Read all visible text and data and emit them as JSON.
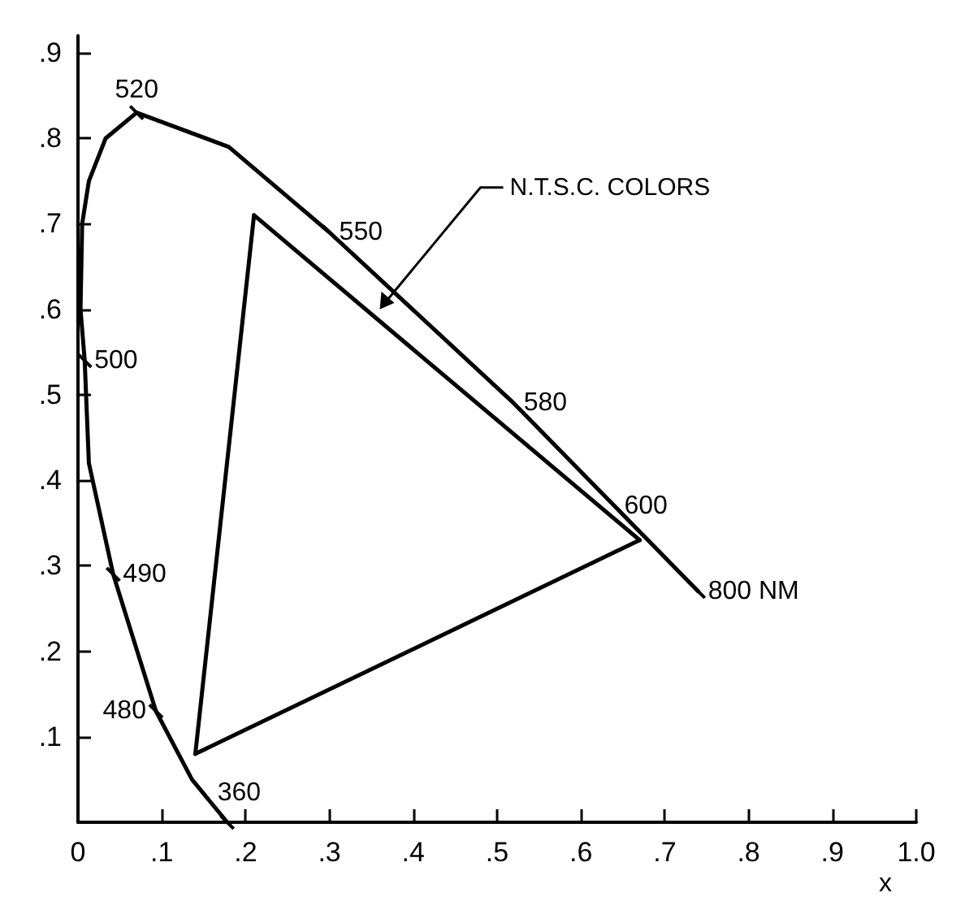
{
  "chart_data": {
    "type": "line",
    "xlabel": "x",
    "xlim": [
      0,
      1.0
    ],
    "ylim": [
      0,
      0.92
    ],
    "xticks": [
      {
        "value": 0,
        "label": "0"
      },
      {
        "value": 0.1,
        "label": ".1"
      },
      {
        "value": 0.2,
        "label": ".2"
      },
      {
        "value": 0.3,
        "label": ".3"
      },
      {
        "value": 0.4,
        "label": ".4"
      },
      {
        "value": 0.5,
        "label": ".5"
      },
      {
        "value": 0.6,
        "label": ".6"
      },
      {
        "value": 0.7,
        "label": ".7"
      },
      {
        "value": 0.8,
        "label": ".8"
      },
      {
        "value": 0.9,
        "label": ".9"
      },
      {
        "value": 1.0,
        "label": "1.0"
      }
    ],
    "yticks": [
      {
        "value": 0.1,
        "label": ".1"
      },
      {
        "value": 0.2,
        "label": ".2"
      },
      {
        "value": 0.3,
        "label": ".3"
      },
      {
        "value": 0.4,
        "label": ".4"
      },
      {
        "value": 0.5,
        "label": ".5"
      },
      {
        "value": 0.6,
        "label": ".6"
      },
      {
        "value": 0.7,
        "label": ".7"
      },
      {
        "value": 0.8,
        "label": ".8"
      },
      {
        "value": 0.9,
        "label": ".9"
      }
    ],
    "grid": false,
    "line_style": "solid",
    "series": [
      {
        "color": "#000000",
        "x": [
          0.178,
          0.136,
          0.093,
          0.042,
          0.013,
          0.008,
          0.003,
          0.005,
          0.013,
          0.033,
          0.07,
          0.18,
          0.3,
          0.52,
          0.64,
          0.74
        ],
        "values": [
          0.0,
          0.05,
          0.13,
          0.29,
          0.42,
          0.54,
          0.6,
          0.7,
          0.75,
          0.8,
          0.83,
          0.79,
          0.69,
          0.49,
          0.37,
          0.27
        ]
      },
      {
        "color": "#000000",
        "x": [
          0.21,
          0.67
        ],
        "values": [
          0.71,
          0.33
        ]
      },
      {
        "color": "#000000",
        "x": [
          0.14,
          0.21
        ],
        "values": [
          0.08,
          0.71
        ]
      },
      {
        "color": "#000000",
        "x": [
          0.14,
          0.67
        ],
        "values": [
          0.08,
          0.33
        ]
      }
    ],
    "annotations": [
      {
        "text": "360",
        "x": 0.178,
        "y": 0.0
      },
      {
        "text": "480",
        "x": 0.093,
        "y": 0.13
      },
      {
        "text": "490",
        "x": 0.042,
        "y": 0.29
      },
      {
        "text": "500",
        "x": 0.008,
        "y": 0.54
      },
      {
        "text": "520",
        "x": 0.07,
        "y": 0.83
      },
      {
        "text": "550",
        "x": 0.3,
        "y": 0.69
      },
      {
        "text": "580",
        "x": 0.52,
        "y": 0.49
      },
      {
        "text": "600",
        "x": 0.64,
        "y": 0.37
      },
      {
        "text": "800 NM",
        "x": 0.74,
        "y": 0.27
      },
      {
        "text": "N.T.S.C. COLORS",
        "x": 0.36,
        "y": 0.6
      }
    ]
  }
}
